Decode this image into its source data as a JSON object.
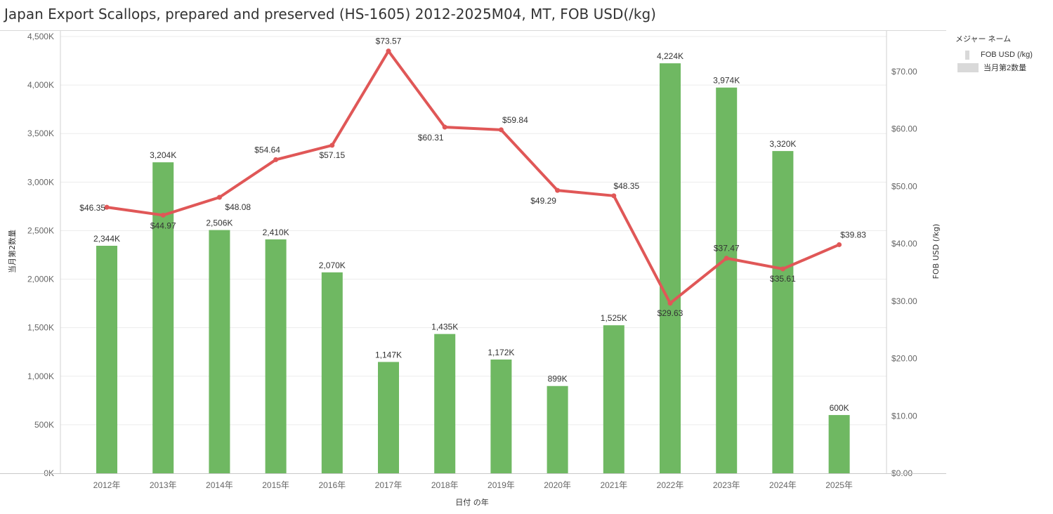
{
  "title": "Japan Export Scallops, prepared and preserved (HS-1605) 2012-2025M04, MT, FOB USD(/kg)",
  "legend": {
    "title": "メジャー ネーム",
    "items": [
      {
        "label": "FOB USD (/kg)",
        "swatch": "line"
      },
      {
        "label": "当月第2数量",
        "swatch": "bar"
      }
    ]
  },
  "colors": {
    "bar": "#6fb862",
    "line": "#e05757",
    "swatch": "#d9d9d9",
    "grid": "#ececec"
  },
  "chart_data": {
    "type": "bar",
    "categories": [
      "2012年",
      "2013年",
      "2014年",
      "2015年",
      "2016年",
      "2017年",
      "2018年",
      "2019年",
      "2020年",
      "2021年",
      "2022年",
      "2023年",
      "2024年",
      "2025年"
    ],
    "series": [
      {
        "name": "当月第2数量",
        "type": "bar",
        "axis": "left",
        "values": [
          2344,
          3204,
          2506,
          2410,
          2070,
          1147,
          1435,
          1172,
          899,
          1525,
          4224,
          3974,
          3320,
          600
        ],
        "labels": [
          "2,344K",
          "3,204K",
          "2,506K",
          "2,410K",
          "2,070K",
          "1,147K",
          "1,435K",
          "1,172K",
          "899K",
          "1,525K",
          "4,224K",
          "3,974K",
          "3,320K",
          "600K"
        ]
      },
      {
        "name": "FOB USD (/kg)",
        "type": "line",
        "axis": "right",
        "values": [
          46.35,
          44.97,
          48.08,
          54.64,
          57.15,
          73.57,
          60.31,
          59.84,
          49.29,
          48.35,
          29.63,
          37.47,
          35.61,
          39.83
        ],
        "labels": [
          "$46.35",
          "$44.97",
          "$48.08",
          "$54.64",
          "$57.15",
          "$73.57",
          "$60.31",
          "$59.84",
          "$49.29",
          "$48.35",
          "$29.63",
          "$37.47",
          "$35.61",
          "$39.83"
        ]
      }
    ],
    "xlabel": "日付 の年",
    "ylabel": "当月第2数量",
    "y2label": "FOB USD (/kg)",
    "ylim": [
      0,
      4500
    ],
    "y2lim": [
      0,
      76.1
    ],
    "yticks": [
      "0K",
      "500K",
      "1,000K",
      "1,500K",
      "2,000K",
      "2,500K",
      "3,000K",
      "3,500K",
      "4,000K",
      "4,500K"
    ],
    "ytick_values": [
      0,
      500,
      1000,
      1500,
      2000,
      2500,
      3000,
      3500,
      4000,
      4500
    ],
    "y2ticks": [
      "$0.00",
      "$10.00",
      "$20.00",
      "$30.00",
      "$40.00",
      "$50.00",
      "$60.00",
      "$70.00"
    ],
    "y2tick_values": [
      0,
      10,
      20,
      30,
      40,
      50,
      60,
      70
    ],
    "grid": true,
    "legend_position": "right"
  }
}
